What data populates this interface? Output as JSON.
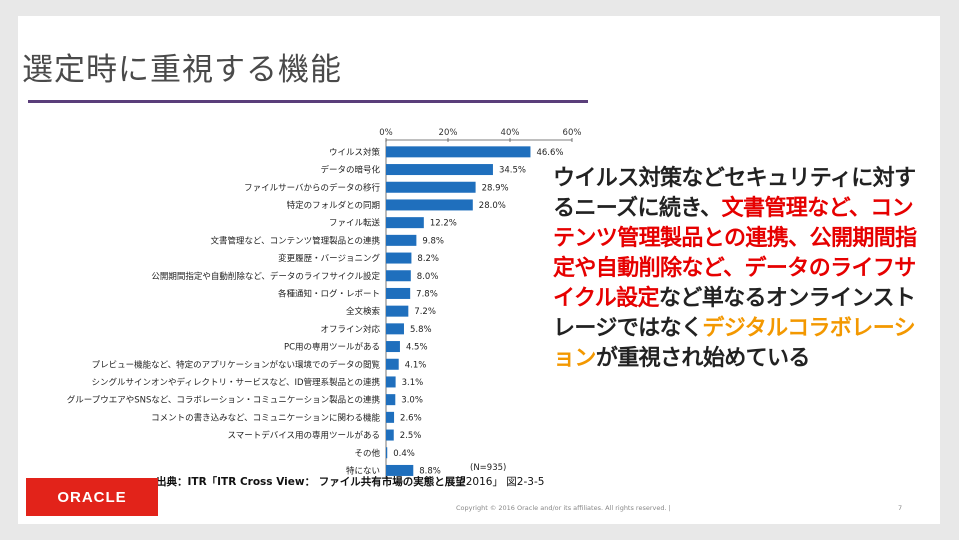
{
  "slide": {
    "title": "選定時に重視する機能",
    "source_main": "出典：ITR「ITR Cross View： ファイル共有市場の実態と展望",
    "source_year": "2016」 図2-3-5",
    "footer": "Copyright © 2016 Oracle and/or its affiliates. All rights reserved.  |",
    "page_number": "7",
    "logo_text": "ORACLE",
    "accent_color": "#5a3e7a",
    "logo_color": "#e2231a"
  },
  "body_text": {
    "part1": "ウイルス対策などセキュリティに対するニーズに続き、",
    "part2_red": "文書管理など、コンテンツ管理製品との連携、公開期間指定や自動削除など、データのライフサイクル設定",
    "part3": "など単なるオンラインストレージではなく",
    "part4_orange": "デジタルコラボレーション",
    "part5": "が重視され始めている",
    "red_color": "#e60000",
    "orange_color": "#f39800"
  },
  "chart_data": {
    "type": "bar",
    "orientation": "horizontal",
    "bar_color": "#1f6fbd",
    "xlim": [
      0,
      60
    ],
    "xticks": [
      "0%",
      "20%",
      "40%",
      "60%"
    ],
    "xtick_values": [
      0,
      20,
      40,
      60
    ],
    "grid": false,
    "note": "(N=935)",
    "categories": [
      "ウイルス対策",
      "データの暗号化",
      "ファイルサーバからのデータの移行",
      "特定のフォルダとの同期",
      "ファイル転送",
      "文書管理など、コンテンツ管理製品との連携",
      "変更履歴・バージョニング",
      "公開期間指定や自動削除など、データのライフサイクル設定",
      "各種通知・ログ・レポート",
      "全文検索",
      "オフライン対応",
      "PC用の専用ツールがある",
      "プレビュー機能など、特定のアプリケーションがない環境でのデータの閲覧",
      "シングルサインオンやディレクトリ・サービスなど、ID管理系製品との連携",
      "グループウエアやSNSなど、コラボレーション・コミュニケーション製品との連携",
      "コメントの書き込みなど、コミュニケーションに関わる機能",
      "スマートデバイス用の専用ツールがある",
      "その他",
      "特にない"
    ],
    "values": [
      46.6,
      34.5,
      28.9,
      28.0,
      12.2,
      9.8,
      8.2,
      8.0,
      7.8,
      7.2,
      5.8,
      4.5,
      4.1,
      3.1,
      3.0,
      2.6,
      2.5,
      0.4,
      8.8
    ],
    "value_labels": [
      "46.6%",
      "34.5%",
      "28.9%",
      "28.0%",
      "12.2%",
      "9.8%",
      "8.2%",
      "8.0%",
      "7.8%",
      "7.2%",
      "5.8%",
      "4.5%",
      "4.1%",
      "3.1%",
      "3.0%",
      "2.6%",
      "2.5%",
      "0.4%",
      "8.8%"
    ]
  }
}
